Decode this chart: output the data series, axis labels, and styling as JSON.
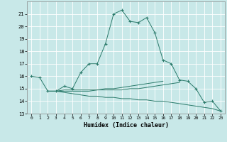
{
  "xlabel": "Humidex (Indice chaleur)",
  "x_values": [
    0,
    1,
    2,
    3,
    4,
    5,
    6,
    7,
    8,
    9,
    10,
    11,
    12,
    13,
    14,
    15,
    16,
    17,
    18,
    19,
    20,
    21,
    22,
    23
  ],
  "line1": [
    16.0,
    15.9,
    14.8,
    14.8,
    15.2,
    15.0,
    16.3,
    17.0,
    17.0,
    18.6,
    21.0,
    21.3,
    20.4,
    20.3,
    20.7,
    19.5,
    17.3,
    17.0,
    15.7,
    15.6,
    15.0,
    13.9,
    14.0,
    13.2
  ],
  "line2": [
    null,
    null,
    14.8,
    14.8,
    14.9,
    14.9,
    14.9,
    14.9,
    14.9,
    15.0,
    15.0,
    15.1,
    15.2,
    15.3,
    15.4,
    15.5,
    15.6,
    null,
    null,
    null,
    null,
    null,
    null,
    null
  ],
  "line3": [
    null,
    null,
    14.8,
    14.8,
    14.8,
    14.8,
    14.8,
    14.8,
    14.9,
    14.9,
    14.9,
    14.9,
    15.0,
    15.0,
    15.1,
    15.2,
    15.3,
    15.4,
    15.5,
    null,
    null,
    null,
    null,
    null
  ],
  "line4": [
    null,
    null,
    14.8,
    14.8,
    14.7,
    14.6,
    14.5,
    14.4,
    14.4,
    14.3,
    14.3,
    14.2,
    14.2,
    14.1,
    14.1,
    14.0,
    14.0,
    13.9,
    13.8,
    13.7,
    13.6,
    13.5,
    13.4,
    13.2
  ],
  "bg_color": "#c8e8e8",
  "grid_color": "#ffffff",
  "line_color": "#2a7a6a",
  "ylim": [
    13,
    22
  ],
  "yticks": [
    13,
    14,
    15,
    16,
    17,
    18,
    19,
    20,
    21
  ],
  "xlim": [
    -0.5,
    23.5
  ]
}
